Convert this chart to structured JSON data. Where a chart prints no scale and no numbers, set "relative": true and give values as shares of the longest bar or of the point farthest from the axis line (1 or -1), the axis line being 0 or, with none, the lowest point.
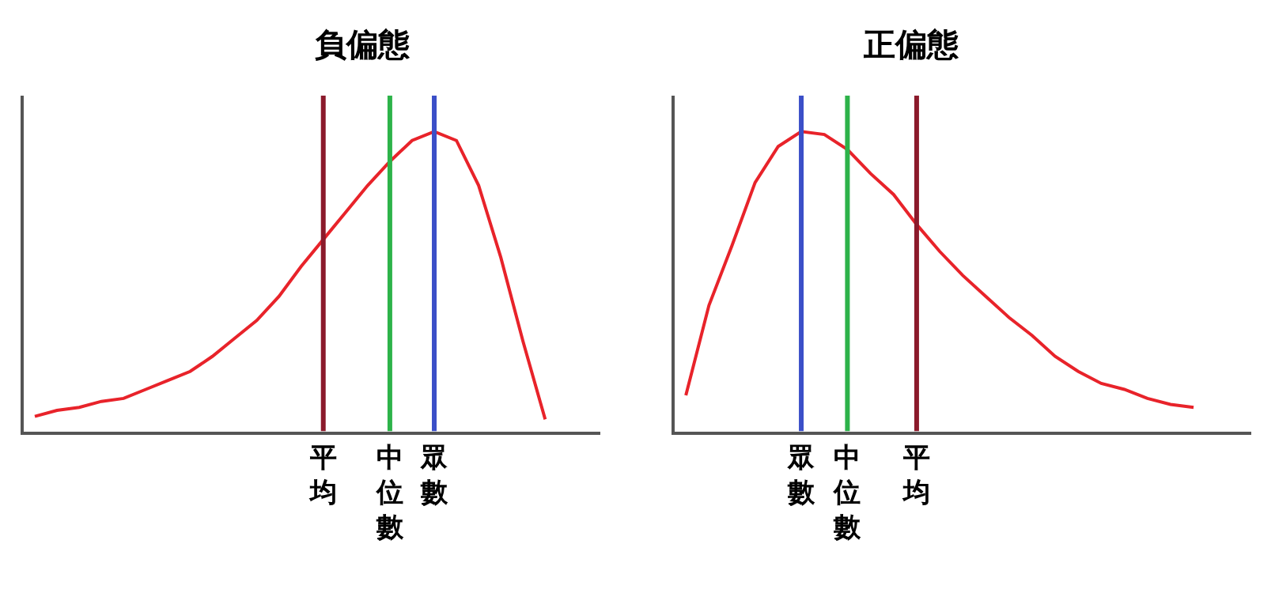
{
  "chart_data": [
    {
      "type": "line",
      "title": "負偏態",
      "relative": true,
      "tick_labels": "x",
      "categories": [
        null,
        null,
        null,
        null,
        null,
        null,
        null,
        null,
        null,
        null,
        null,
        null,
        null,
        "平均",
        null,
        null,
        "中位數",
        null,
        "眾數",
        null,
        null,
        null,
        null,
        null
      ],
      "series": [
        {
          "color": "#e8232a",
          "values": [
            0.05,
            0.07,
            0.08,
            0.1,
            0.11,
            0.14,
            0.17,
            0.2,
            0.25,
            0.31,
            0.37,
            0.45,
            0.55,
            0.64,
            0.73,
            0.82,
            0.9,
            0.97,
            1.0,
            0.97,
            0.82,
            0.58,
            0.3,
            0.04
          ]
        }
      ],
      "ref_lines": [
        {
          "axis": "x",
          "value": "平均",
          "color": "#8b1a2b"
        },
        {
          "axis": "x",
          "value": "中位數",
          "color": "#2db34a"
        },
        {
          "axis": "x",
          "value": "眾數",
          "color": "#3b4fc8"
        }
      ]
    },
    {
      "type": "line",
      "title": "正偏態",
      "relative": true,
      "tick_labels": "x",
      "categories": [
        null,
        null,
        null,
        null,
        null,
        "眾數",
        null,
        "中位數",
        null,
        null,
        "平均",
        null,
        null,
        null,
        null,
        null,
        null,
        null,
        null,
        null,
        null,
        null,
        null
      ],
      "series": [
        {
          "color": "#e8232a",
          "values": [
            0.12,
            0.42,
            0.62,
            0.83,
            0.95,
            1.0,
            0.99,
            0.94,
            0.86,
            0.79,
            0.69,
            0.6,
            0.52,
            0.45,
            0.38,
            0.32,
            0.25,
            0.2,
            0.16,
            0.14,
            0.11,
            0.09,
            0.08
          ]
        }
      ],
      "ref_lines": [
        {
          "axis": "x",
          "value": "眾數",
          "color": "#3b4fc8"
        },
        {
          "axis": "x",
          "value": "中位數",
          "color": "#2db34a"
        },
        {
          "axis": "x",
          "value": "平均",
          "color": "#8b1a2b"
        }
      ]
    }
  ]
}
